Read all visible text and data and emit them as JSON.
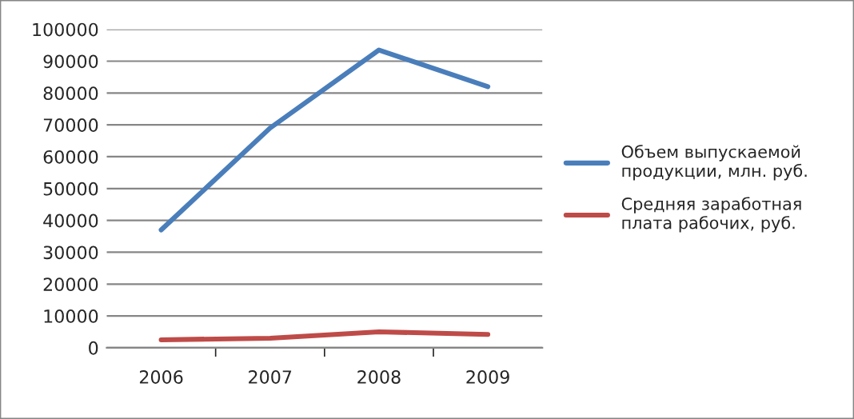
{
  "chart_data": {
    "type": "line",
    "categories": [
      "2006",
      "2007",
      "2008",
      "2009"
    ],
    "series": [
      {
        "name": "Объем выпускаемой\nпродукции, млн. руб.",
        "color": "#4a7ebb",
        "values": [
          37000,
          69000,
          93500,
          82000
        ]
      },
      {
        "name": "Средняя заработная\nплата рабочих, руб.",
        "color": "#be4b48",
        "values": [
          2500,
          3000,
          5000,
          4200
        ]
      }
    ],
    "ylim": [
      0,
      100000
    ],
    "yticks": [
      0,
      10000,
      20000,
      30000,
      40000,
      50000,
      60000,
      70000,
      80000,
      90000,
      100000
    ],
    "grid": "y",
    "legend": "right",
    "marker": "none",
    "line_style": "solid"
  }
}
